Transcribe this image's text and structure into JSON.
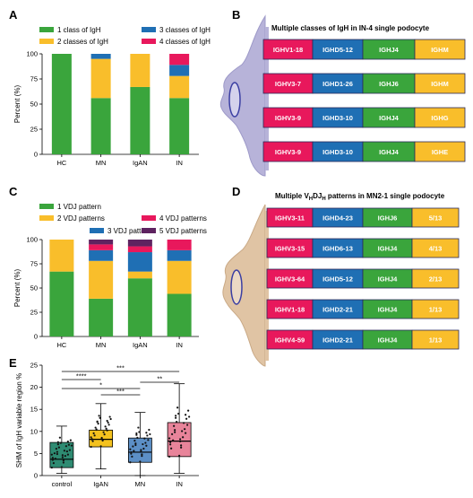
{
  "colors": {
    "green": "#3aa53c",
    "yellow": "#f9be2b",
    "blue": "#1f6fb4",
    "pink": "#e8185c",
    "purple": "#5e2360",
    "cellA": "#b7b3d9",
    "cellA_stroke": "#9d99c8",
    "cellD": "#e0c4a4",
    "cellD_stroke": "#c9a986",
    "nucleus": "#3b3fa3",
    "teal": "#2e8b72",
    "gold": "#f4c21e",
    "steel": "#5c8fc6",
    "rose": "#e8849a"
  },
  "chart_data": [
    {
      "panel": "A",
      "type": "bar",
      "stacked": true,
      "categories": [
        "HC",
        "MN",
        "IgAN",
        "IN"
      ],
      "series": [
        {
          "name": "1 class of IgH",
          "color": "#3aa53c",
          "values": [
            100,
            56,
            67,
            56
          ]
        },
        {
          "name": "2 classes of IgH",
          "color": "#f9be2b",
          "values": [
            0,
            39,
            33,
            22
          ]
        },
        {
          "name": "3 classes of IgH",
          "color": "#1f6fb4",
          "values": [
            0,
            5,
            0,
            11
          ]
        },
        {
          "name": "4 classes of IgH",
          "color": "#e8185c",
          "values": [
            0,
            0,
            0,
            11
          ]
        }
      ],
      "ylabel": "Percent (%)",
      "ylim": [
        0,
        100
      ],
      "yticks": [
        0,
        25,
        50,
        75,
        100
      ],
      "legend": "top"
    },
    {
      "panel": "C",
      "type": "bar",
      "stacked": true,
      "categories": [
        "HC",
        "MN",
        "IgAN",
        "IN"
      ],
      "series": [
        {
          "name": "1 VDJ pattern",
          "color": "#3aa53c",
          "values": [
            67,
            39,
            60,
            44
          ]
        },
        {
          "name": "2 VDJ patterns",
          "color": "#f9be2b",
          "values": [
            33,
            39,
            7,
            34
          ]
        },
        {
          "name": "3 VDJ patterns",
          "color": "#1f6fb4",
          "values": [
            0,
            11,
            20,
            11
          ]
        },
        {
          "name": "4 VDJ patterns",
          "color": "#e8185c",
          "values": [
            0,
            6,
            6,
            11
          ]
        },
        {
          "name": "5 VDJ patterns",
          "color": "#5e2360",
          "values": [
            0,
            5,
            7,
            0
          ]
        }
      ],
      "ylabel": "Percent (%)",
      "ylim": [
        0,
        100
      ],
      "yticks": [
        0,
        25,
        50,
        75,
        100
      ],
      "legend": "top"
    },
    {
      "panel": "E",
      "type": "box",
      "categories": [
        "control",
        "IgAN",
        "MN",
        "IN"
      ],
      "ylabel": "SHM of IgH variable region %",
      "ylim": [
        0,
        25
      ],
      "yticks": [
        0,
        5,
        10,
        15,
        20,
        25
      ],
      "boxes": [
        {
          "name": "control",
          "color": "#2e8b72",
          "min": 0.5,
          "q1": 1.8,
          "median": 3.7,
          "q3": 7.5,
          "max": 11.2
        },
        {
          "name": "IgAN",
          "color": "#f4c21e",
          "min": 1.5,
          "q1": 6.5,
          "median": 8.2,
          "q3": 10.3,
          "max": 16.3
        },
        {
          "name": "MN",
          "color": "#5c8fc6",
          "min": 0.0,
          "q1": 3.0,
          "median": 5.3,
          "q3": 8.5,
          "max": 14.3
        },
        {
          "name": "IN",
          "color": "#e8849a",
          "min": 0.5,
          "q1": 4.3,
          "median": 7.8,
          "q3": 12.0,
          "max": 20.8
        }
      ],
      "comparisons": [
        {
          "from": 0,
          "to": 3,
          "label": "***"
        },
        {
          "from": 0,
          "to": 1,
          "label": "****"
        },
        {
          "from": 0,
          "to": 2,
          "label": "*"
        },
        {
          "from": 2,
          "to": 3,
          "label": "**"
        },
        {
          "from": 1,
          "to": 2,
          "label": "***"
        }
      ]
    }
  ],
  "panel_labels": {
    "a": "A",
    "b": "B",
    "c": "C",
    "d": "D",
    "e": "E"
  },
  "diagram_b": {
    "title": "Multiple classes of IgH in IN-4 single podocyte",
    "rows": [
      [
        "IGHV1-18",
        "IGHD5-12",
        "IGHJ4",
        "IGHM"
      ],
      [
        "IGHV3-7",
        "IGHD1-26",
        "IGHJ6",
        "IGHM"
      ],
      [
        "IGHV3-9",
        "IGHD3-10",
        "IGHJ4",
        "IGHG"
      ],
      [
        "IGHV3-9",
        "IGHD3-10",
        "IGHJ4",
        "IGHE"
      ]
    ]
  },
  "diagram_d": {
    "title_prefix": "Multiple V",
    "title_sub1": "H",
    "title_mid": "DJ",
    "title_sub2": "H",
    "title_suffix": " patterns in MN2-1 single podocyte",
    "rows": [
      [
        "IGHV3-11",
        "IGHD4-23",
        "IGHJ6",
        "5/13"
      ],
      [
        "IGHV3-15",
        "IGHD6-13",
        "IGHJ4",
        "4/13"
      ],
      [
        "IGHV3-64",
        "IGHD5-12",
        "IGHJ4",
        "2/13"
      ],
      [
        "IGHV1-18",
        "IGHD2-21",
        "IGHJ4",
        "1/13"
      ],
      [
        "IGHV4-59",
        "IGHD2-21",
        "IGHJ4",
        "1/13"
      ]
    ]
  }
}
